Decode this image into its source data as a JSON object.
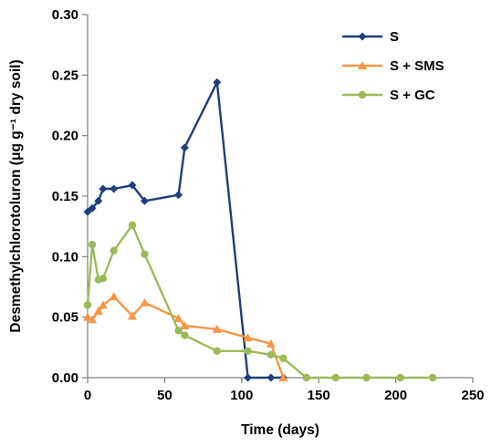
{
  "chart_data": {
    "type": "line",
    "xlabel": "Time (days)",
    "ylabel": "Desmethylchlorotoluron (μg g⁻¹ dry soil)",
    "xlim": [
      0,
      250
    ],
    "ylim": [
      0,
      0.3
    ],
    "x_ticks": [
      "0",
      "50",
      "100",
      "150",
      "200",
      "250"
    ],
    "y_ticks": [
      "0.00",
      "0.05",
      "0.10",
      "0.15",
      "0.20",
      "0.25",
      "0.30"
    ],
    "grid": false,
    "legend_position": "top-right",
    "series": [
      {
        "name": "S",
        "color": "#1f3e7a",
        "marker": "diamond",
        "points": [
          [
            0,
            0.137
          ],
          [
            3,
            0.14
          ],
          [
            7,
            0.146
          ],
          [
            10,
            0.156
          ],
          [
            17,
            0.156
          ],
          [
            29,
            0.159
          ],
          [
            37,
            0.146
          ],
          [
            59,
            0.151
          ],
          [
            63,
            0.19
          ],
          [
            84,
            0.244
          ],
          [
            104,
            0.0
          ],
          [
            119,
            0.0
          ],
          [
            127,
            0.0
          ]
        ]
      },
      {
        "name": "S + SMS",
        "color": "#f79646",
        "marker": "triangle",
        "points": [
          [
            0,
            0.05
          ],
          [
            3,
            0.048
          ],
          [
            7,
            0.055
          ],
          [
            10,
            0.06
          ],
          [
            17,
            0.067
          ],
          [
            29,
            0.051
          ],
          [
            37,
            0.062
          ],
          [
            59,
            0.049
          ],
          [
            63,
            0.043
          ],
          [
            84,
            0.04
          ],
          [
            104,
            0.033
          ],
          [
            119,
            0.028
          ],
          [
            127,
            0.0
          ]
        ]
      },
      {
        "name": "S + GC",
        "color": "#9bbb59",
        "marker": "circle",
        "points": [
          [
            0,
            0.06
          ],
          [
            3,
            0.11
          ],
          [
            7,
            0.081
          ],
          [
            10,
            0.082
          ],
          [
            17,
            0.105
          ],
          [
            29,
            0.126
          ],
          [
            37,
            0.102
          ],
          [
            59,
            0.039
          ],
          [
            63,
            0.035
          ],
          [
            84,
            0.022
          ],
          [
            104,
            0.022
          ],
          [
            119,
            0.019
          ],
          [
            127,
            0.016
          ],
          [
            142,
            0.0
          ],
          [
            161,
            0.0
          ],
          [
            181,
            0.0
          ],
          [
            203,
            0.0
          ],
          [
            224,
            0.0
          ]
        ]
      }
    ]
  }
}
